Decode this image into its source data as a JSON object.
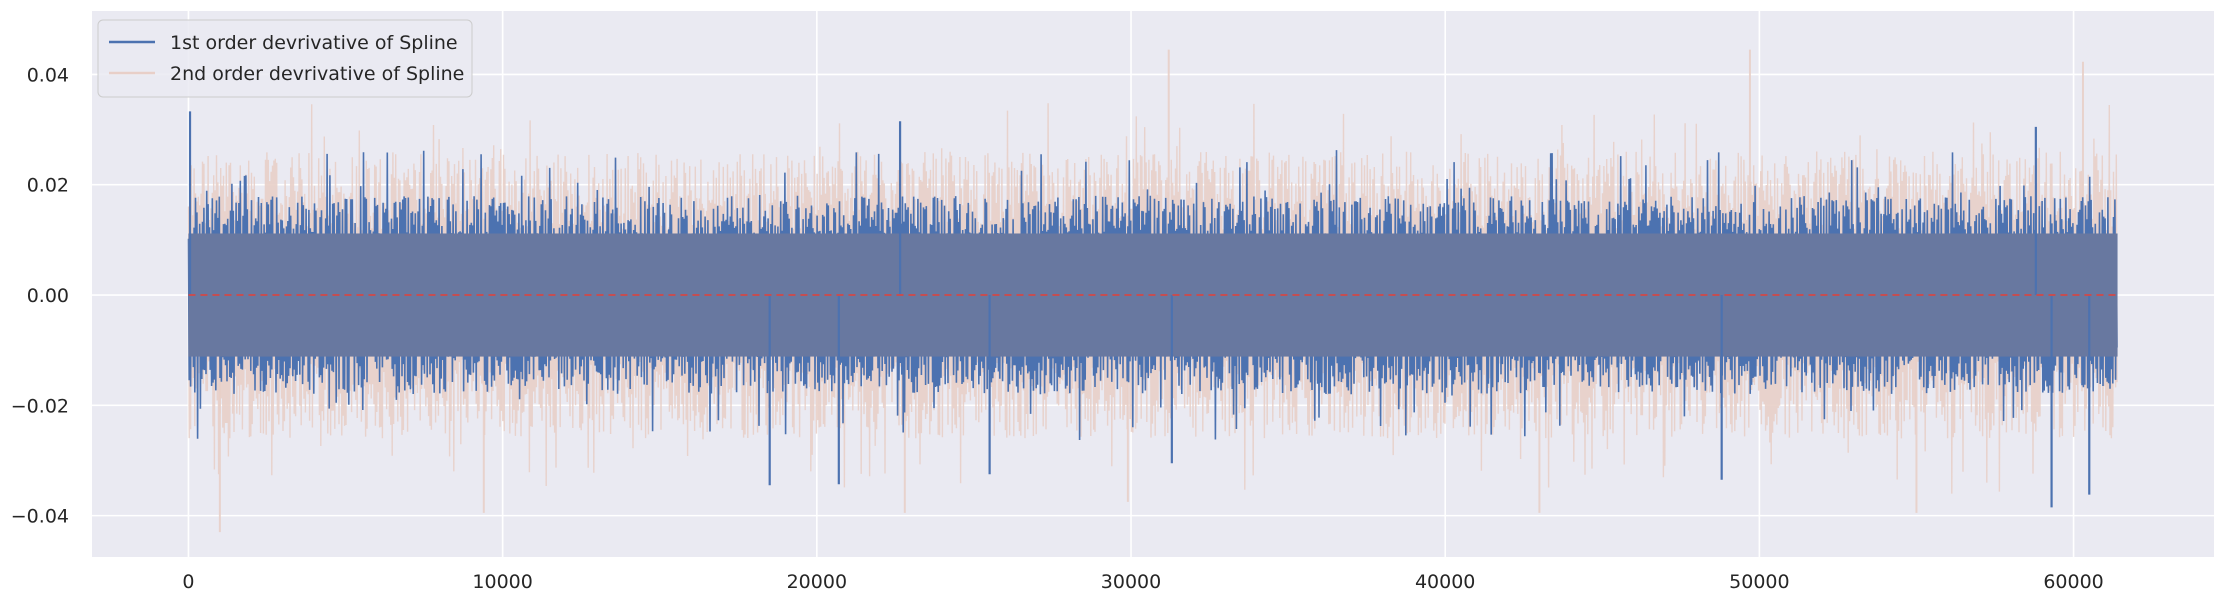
{
  "chart_data": {
    "type": "line",
    "title": "",
    "xlabel": "",
    "ylabel": "",
    "xlim": [
      -3070,
      64470
    ],
    "ylim": [
      -0.0475,
      0.0515
    ],
    "x_ticks": [
      0,
      10000,
      20000,
      30000,
      40000,
      50000,
      60000
    ],
    "x_tick_labels": [
      "0",
      "10000",
      "20000",
      "30000",
      "40000",
      "50000",
      "60000"
    ],
    "y_ticks": [
      -0.04,
      -0.02,
      0.0,
      0.02,
      0.04
    ],
    "y_tick_labels": [
      "−0.04",
      "−0.02",
      "0.00",
      "0.02",
      "0.04"
    ],
    "grid": true,
    "legend_placement": "upper-left",
    "colors": {
      "background": "#eaeaf2",
      "grid": "#ffffff",
      "first_order": "#4c72b0",
      "first_order_overlap": "#6878a0",
      "second_order": "#e8cfc8",
      "zero_line": "#c44e52"
    },
    "series": [
      {
        "name": "1st order devrivative of Spline",
        "x_range": [
          0,
          61400
        ],
        "envelope": {
          "typical_upper": 0.018,
          "typical_lower": -0.018,
          "peak_max": 0.0333,
          "peak_min": -0.0385
        },
        "spikes": [
          {
            "x": 50,
            "y": 0.0333
          },
          {
            "x": 22650,
            "y": 0.0315
          },
          {
            "x": 58800,
            "y": 0.0305
          },
          {
            "x": 59300,
            "y": -0.0385
          },
          {
            "x": 60500,
            "y": -0.0362
          },
          {
            "x": 18500,
            "y": -0.0345
          },
          {
            "x": 20700,
            "y": -0.0343
          },
          {
            "x": 25500,
            "y": -0.0325
          },
          {
            "x": 31300,
            "y": -0.0305
          },
          {
            "x": 48800,
            "y": -0.0335
          }
        ]
      },
      {
        "name": "2nd order devrivative of Spline",
        "x_range": [
          0,
          61400
        ],
        "envelope": {
          "typical_upper": 0.026,
          "typical_lower": -0.026,
          "peak_max": 0.0445,
          "peak_min": -0.043
        },
        "spikes": [
          {
            "x": 31200,
            "y": 0.0445
          },
          {
            "x": 49700,
            "y": 0.0445
          },
          {
            "x": 60300,
            "y": 0.0423
          },
          {
            "x": 1000,
            "y": -0.043
          },
          {
            "x": 9400,
            "y": -0.0395
          },
          {
            "x": 22800,
            "y": -0.0395
          },
          {
            "x": 29900,
            "y": -0.0375
          },
          {
            "x": 43000,
            "y": -0.0395
          },
          {
            "x": 55000,
            "y": -0.0395
          }
        ]
      },
      {
        "name": "",
        "style": "dashed",
        "y": 0.0,
        "x_range": [
          0,
          61400
        ]
      }
    ]
  }
}
